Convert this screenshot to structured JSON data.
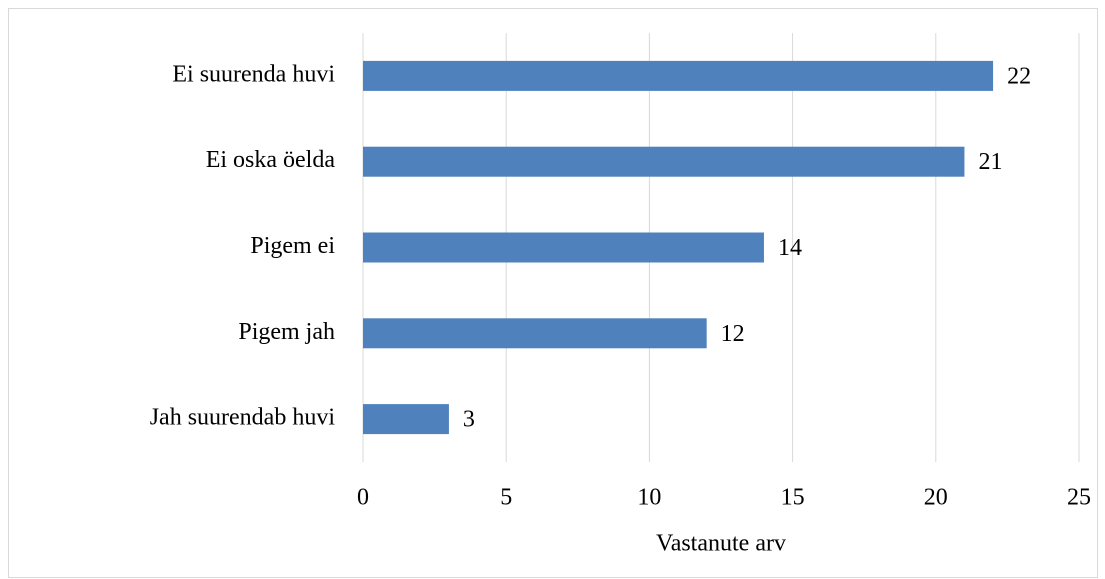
{
  "chart_data": {
    "type": "bar",
    "orientation": "horizontal",
    "x_label": "Vastanute arv",
    "categories": [
      "Ei suurenda huvi",
      "Ei oska öelda",
      "Pigem ei",
      "Pigem jah",
      "Jah suurendab huvi"
    ],
    "values": [
      22,
      21,
      14,
      12,
      3
    ],
    "color": "#4f81bd",
    "xlim": [
      0,
      25
    ],
    "xticks": [
      0,
      5,
      10,
      15,
      20,
      25
    ],
    "grid": true
  }
}
